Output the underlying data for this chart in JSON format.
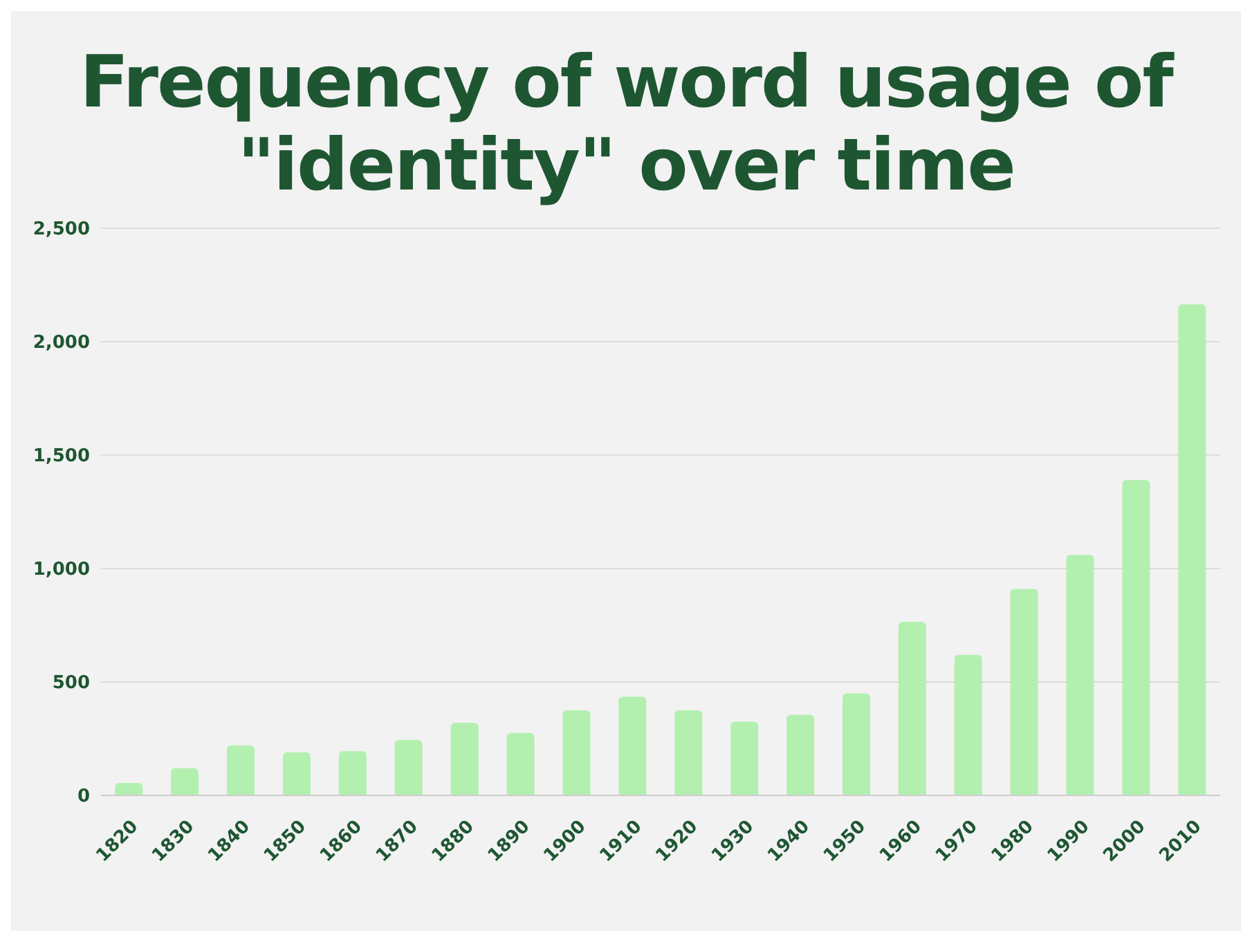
{
  "chart_data": {
    "type": "bar",
    "title": "Frequency of word usage of \"identity\" over time",
    "categories": [
      "1820",
      "1830",
      "1840",
      "1850",
      "1860",
      "1870",
      "1880",
      "1890",
      "1900",
      "1910",
      "1920",
      "1930",
      "1940",
      "1950",
      "1960",
      "1970",
      "1980",
      "1990",
      "2000",
      "2010"
    ],
    "values": [
      55,
      120,
      220,
      190,
      195,
      245,
      320,
      275,
      375,
      435,
      375,
      325,
      355,
      450,
      765,
      620,
      910,
      1060,
      1390,
      2165
    ],
    "color": "#b3f0b0",
    "ylim": [
      0,
      2500
    ],
    "yticks": [
      0,
      {
        "value": 500,
        "label": "500"
      },
      {
        "value": 1000,
        "label": "1,000"
      },
      {
        "value": 1500,
        "label": "1,500"
      },
      {
        "value": 2000,
        "label": "2,000"
      },
      {
        "value": 2500,
        "label": "2,500"
      }
    ],
    "grid": "y"
  }
}
